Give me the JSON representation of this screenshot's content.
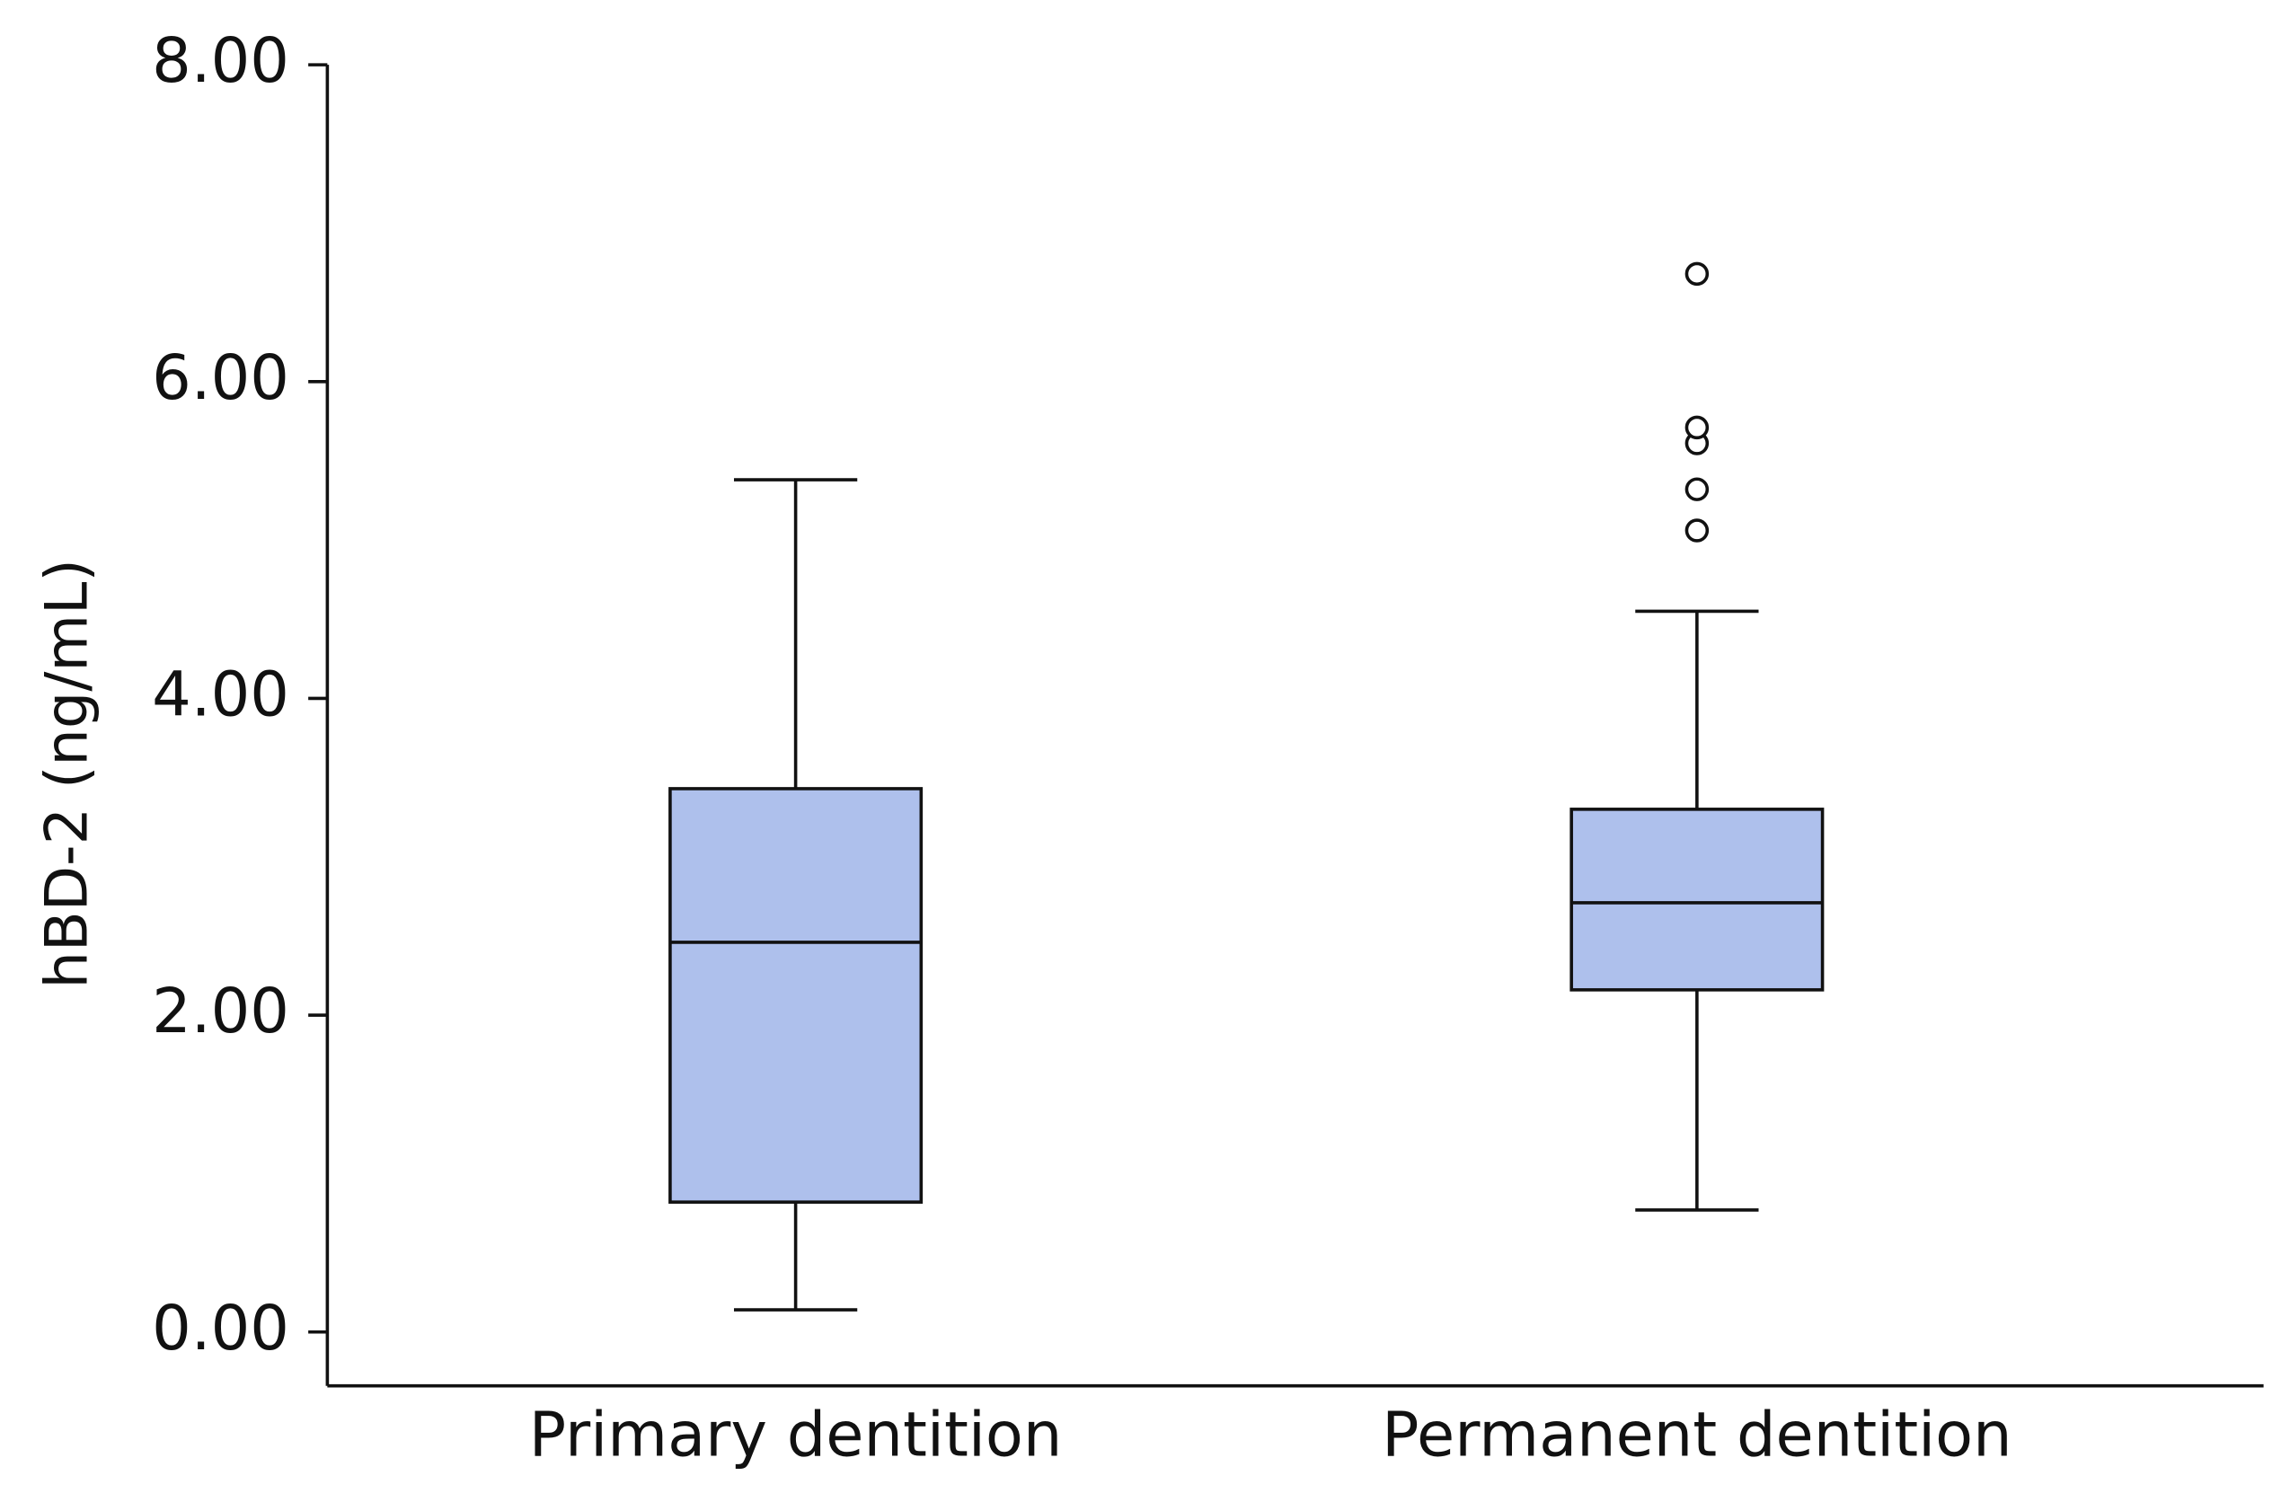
{
  "chart_data": {
    "type": "box",
    "y_label": "hBD-2 (ng/mL)",
    "categories": [
      "Primary dentition",
      "Permanent dentition"
    ],
    "color": "#aec0ec",
    "boxes": [
      {
        "whislo": 0.14,
        "q1": 0.82,
        "med": 2.46,
        "q3": 3.43,
        "whishi": 5.38,
        "fliers": []
      },
      {
        "whislo": 0.77,
        "q1": 2.16,
        "med": 2.71,
        "q3": 3.3,
        "whishi": 4.55,
        "fliers": [
          5.06,
          5.32,
          5.61,
          5.71,
          6.68
        ]
      }
    ],
    "ylim": [
      -0.34,
      8
    ],
    "yticks": [
      {
        "value": 0,
        "label": "0.00"
      },
      {
        "value": 2,
        "label": "2.00"
      },
      {
        "value": 4,
        "label": "4.00"
      },
      {
        "value": 6,
        "label": "6.00"
      },
      {
        "value": 8,
        "label": "8.00"
      }
    ]
  }
}
